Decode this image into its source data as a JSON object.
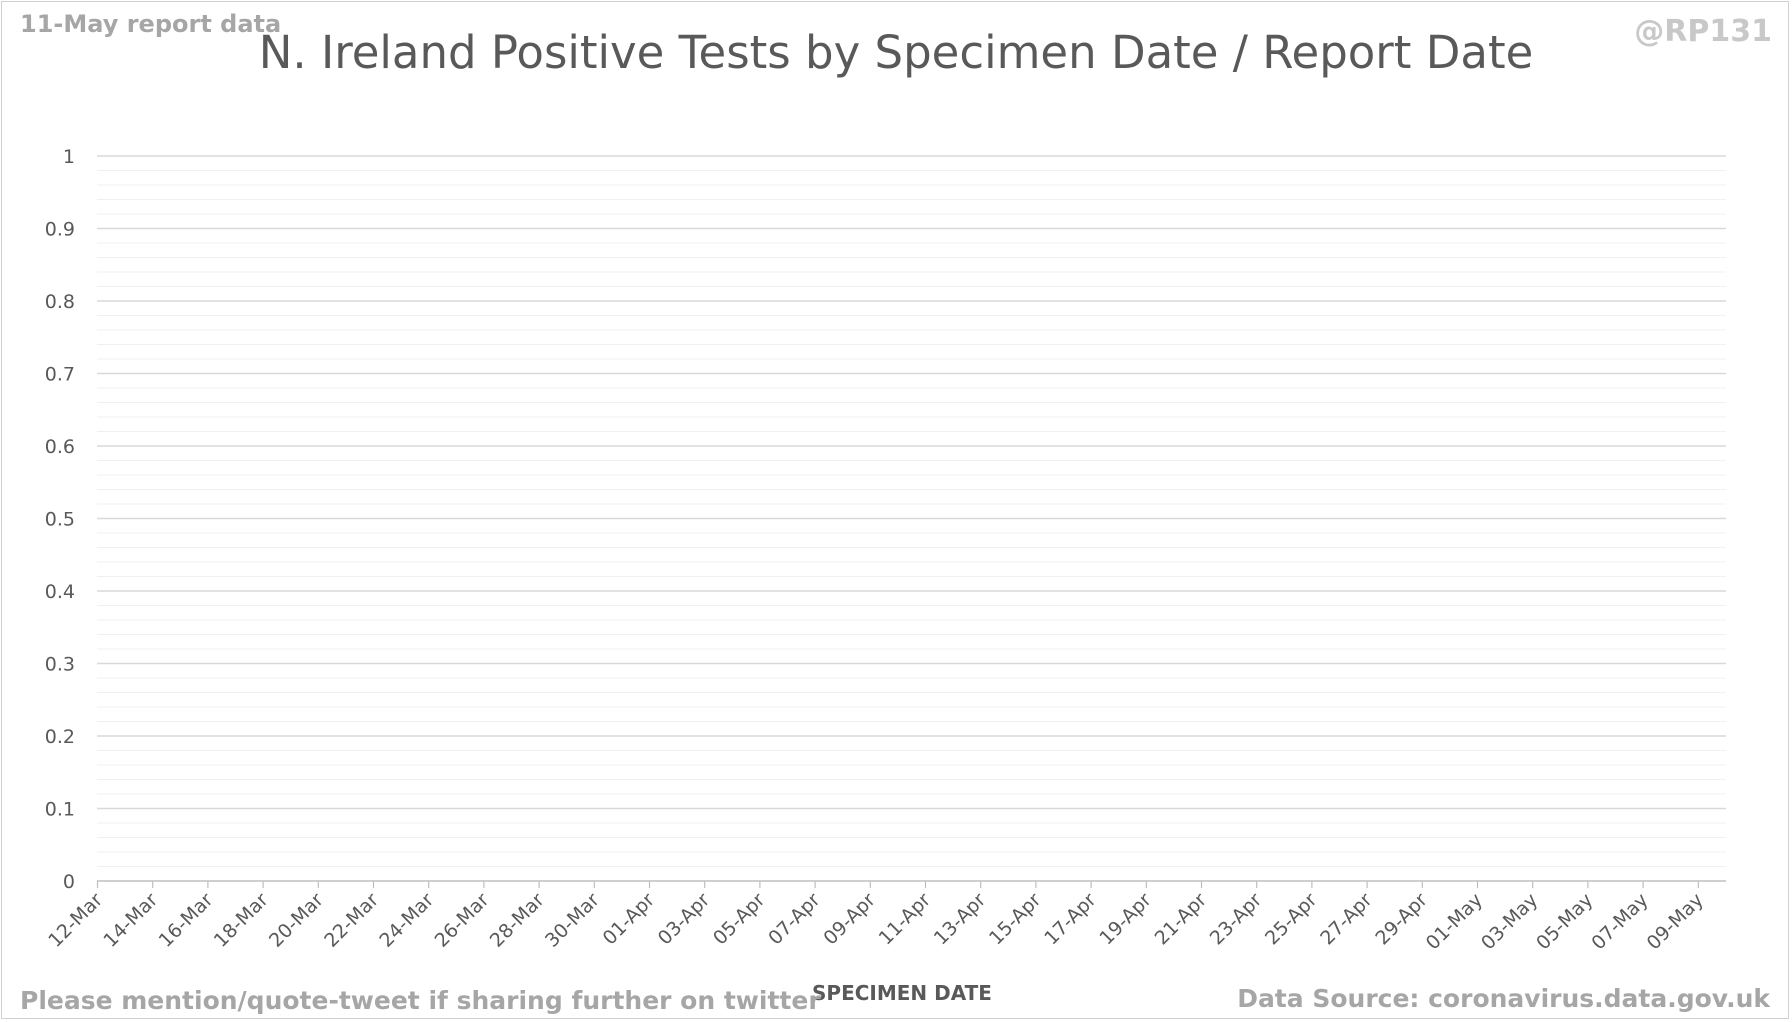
{
  "header": {
    "report_note": "11-May report data",
    "handle": "@RP131",
    "title": "N. Ireland Positive Tests by Specimen Date / Report Date"
  },
  "footer": {
    "share_note": "Please mention/quote-tweet if sharing further on twitter",
    "source": "Data Source: coronavirus.data.gov.uk"
  },
  "chart_data": {
    "type": "bar",
    "title": "N. Ireland Positive Tests by Specimen Date / Report Date",
    "xlabel": "SPECIMEN DATE",
    "ylabel": "",
    "ylim": [
      0,
      1
    ],
    "yticks": [
      "0",
      "0.1",
      "0.2",
      "0.3",
      "0.4",
      "0.5",
      "0.6",
      "0.7",
      "0.8",
      "0.9",
      "1"
    ],
    "categories": [
      "12-Mar",
      "14-Mar",
      "16-Mar",
      "18-Mar",
      "20-Mar",
      "22-Mar",
      "24-Mar",
      "26-Mar",
      "28-Mar",
      "30-Mar",
      "01-Apr",
      "03-Apr",
      "05-Apr",
      "07-Apr",
      "09-Apr",
      "11-Apr",
      "13-Apr",
      "15-Apr",
      "17-Apr",
      "19-Apr",
      "21-Apr",
      "23-Apr",
      "25-Apr",
      "27-Apr",
      "29-Apr",
      "01-May",
      "03-May",
      "05-May",
      "07-May",
      "09-May"
    ],
    "series": [],
    "grid": true,
    "minor_grid": true,
    "legend": "none",
    "colors": {
      "major_grid": "#d9d9d9",
      "minor_grid": "#f0f0f0",
      "axis": "#bfbfbf",
      "text": "#595959"
    }
  }
}
